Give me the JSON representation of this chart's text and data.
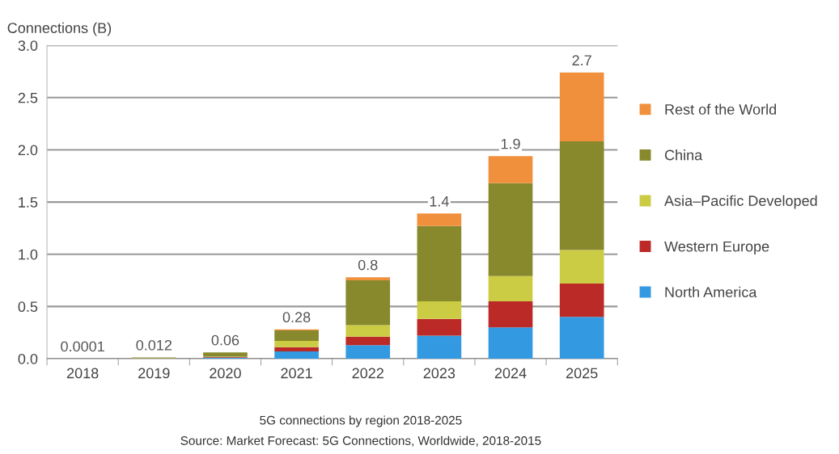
{
  "chart_data": {
    "type": "bar",
    "stacked": true,
    "title": "5G connections by region 2018-2025",
    "ylabel": "Connections (B)",
    "annotations": [
      "Source: Market Forecast: 5G Connections, Worldwide, 2018-2015"
    ],
    "categories": [
      "2018",
      "2019",
      "2020",
      "2021",
      "2022",
      "2023",
      "2024",
      "2025"
    ],
    "series": [
      {
        "name": "North America",
        "color": "#3399e0",
        "values": [
          0.0001,
          0.002,
          0.01,
          0.07,
          0.13,
          0.22,
          0.3,
          0.4
        ]
      },
      {
        "name": "Western Europe",
        "color": "#bb2a27",
        "values": [
          0,
          0.001,
          0.005,
          0.04,
          0.08,
          0.16,
          0.25,
          0.32
        ]
      },
      {
        "name": "Asia–Pacific Developed",
        "color": "#cccc44",
        "values": [
          0,
          0.004,
          0.005,
          0.06,
          0.11,
          0.17,
          0.24,
          0.32
        ]
      },
      {
        "name": "China",
        "color": "#88892c",
        "values": [
          0,
          0.005,
          0.04,
          0.1,
          0.43,
          0.72,
          0.89,
          1.04
        ]
      },
      {
        "name": "Rest of the World",
        "color": "#f0903c",
        "values": [
          0,
          0,
          0,
          0.01,
          0.03,
          0.12,
          0.26,
          0.66
        ]
      }
    ],
    "totals": [
      "0.0001",
      "0.012",
      "0.06",
      "0.28",
      "0.8",
      "1.4",
      "1.9",
      "2.7"
    ],
    "ylim": [
      0,
      3.0
    ],
    "yticks": [
      {
        "value": 0,
        "label": "0.0"
      },
      0.5,
      {
        "value": 1,
        "label": "1.0"
      },
      1.5,
      {
        "value": 2,
        "label": "2.0"
      },
      2.5,
      {
        "value": 3,
        "label": "3.0"
      }
    ],
    "grid": "y",
    "legend": "right",
    "marker": "square"
  }
}
